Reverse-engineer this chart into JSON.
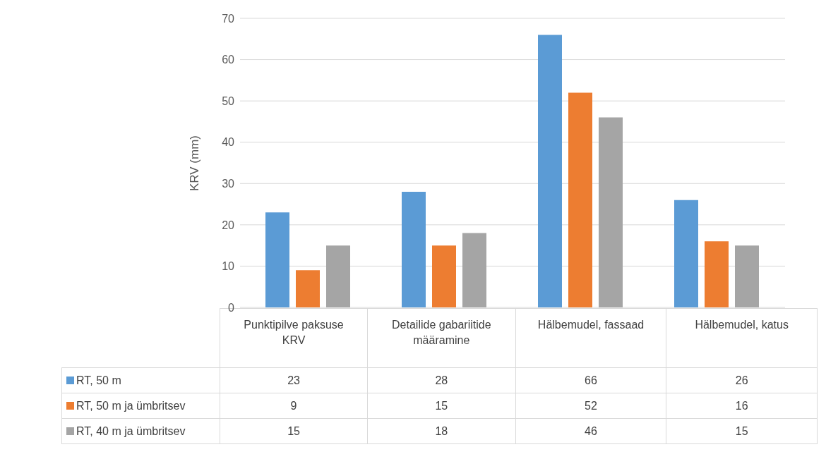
{
  "chart_data": {
    "type": "bar",
    "ylabel": "KRV (mm)",
    "categories": [
      "Punktipilve paksuse KRV",
      "Detailide gabariitide määramine",
      "Hälbemudel, fassaad",
      "Hälbemudel, katus"
    ],
    "series": [
      {
        "name": "RT, 50 m",
        "color": "#5b9bd5",
        "values": [
          23,
          28,
          66,
          26
        ]
      },
      {
        "name": "RT, 50 m ja ümbritsev",
        "color": "#ed7d31",
        "values": [
          9,
          15,
          52,
          16
        ]
      },
      {
        "name": "RT, 40 m ja ümbritsev",
        "color": "#a5a5a5",
        "values": [
          15,
          18,
          46,
          15
        ]
      }
    ],
    "ylim": [
      0,
      70
    ],
    "yticks": [
      0,
      10,
      20,
      30,
      40,
      50,
      60,
      70
    ],
    "grid": "y",
    "legend": "bottom",
    "data_labels": true
  }
}
